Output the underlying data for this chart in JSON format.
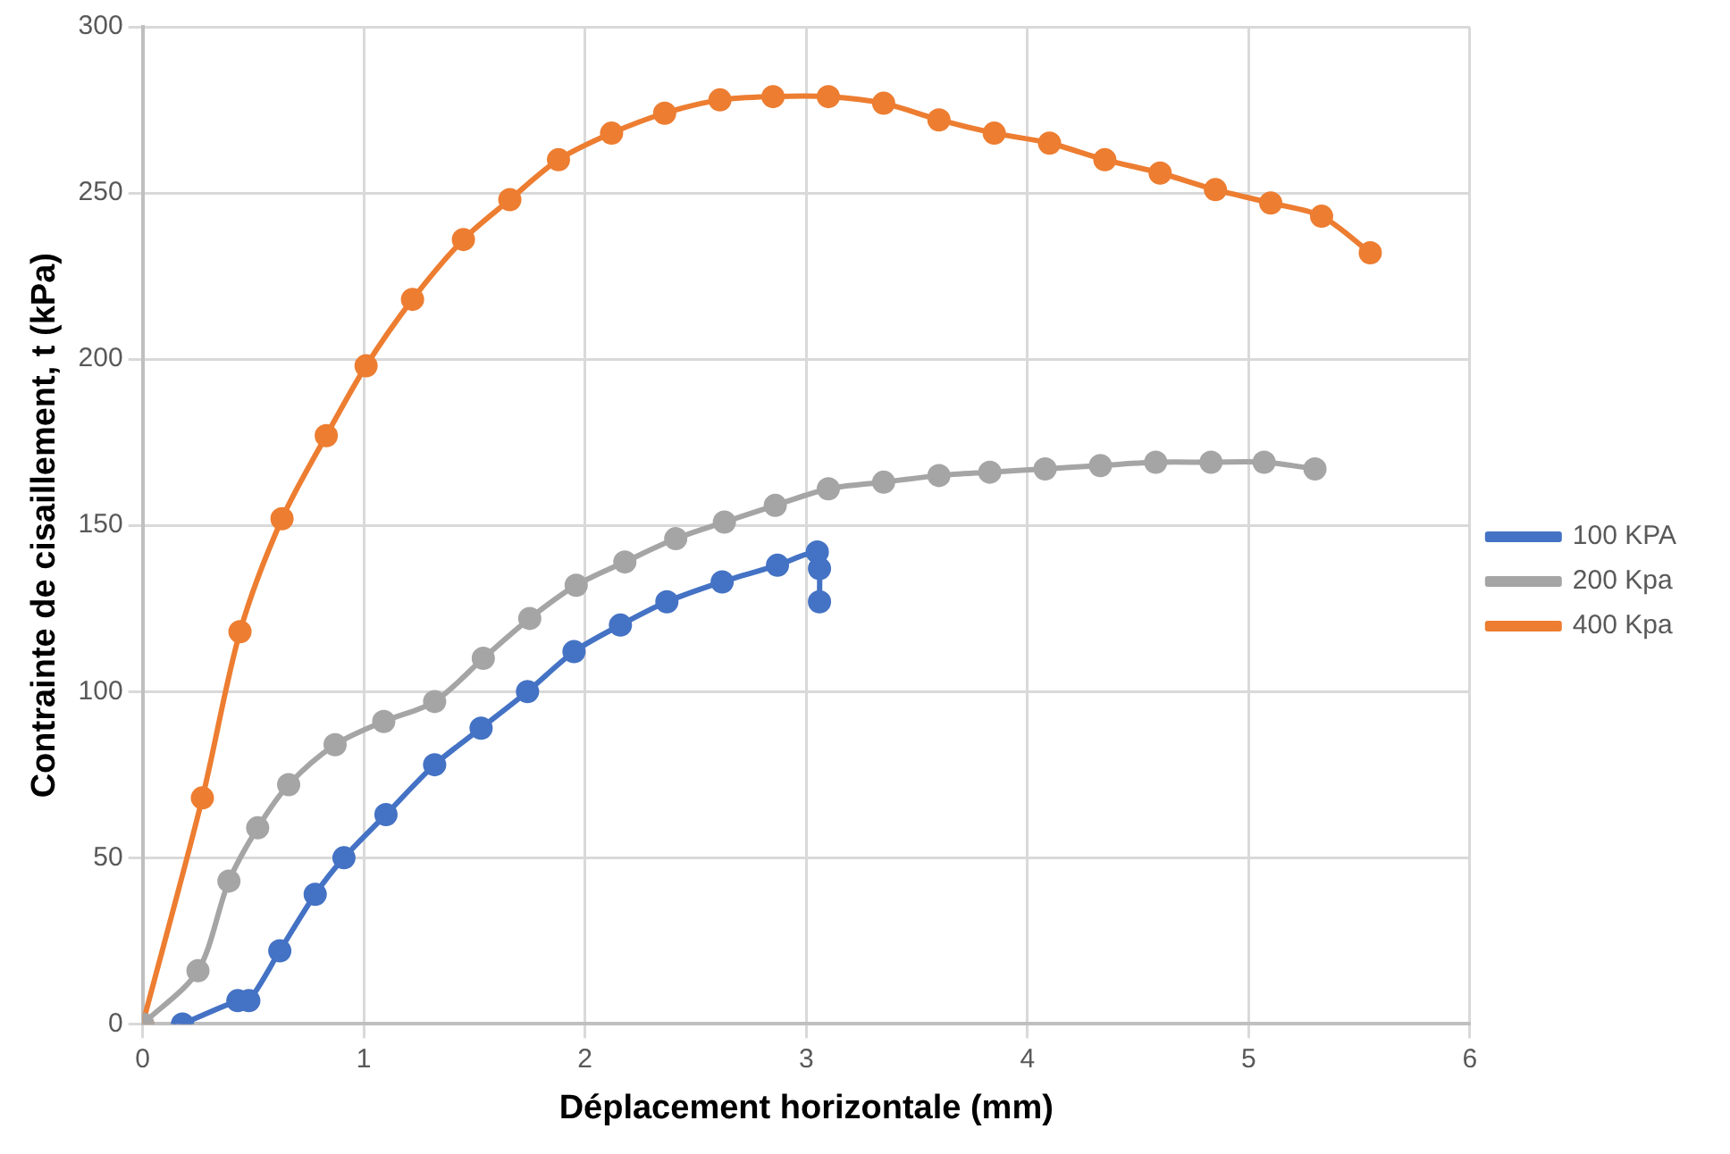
{
  "chart_data": {
    "type": "line",
    "xlabel": "Déplacement horizontale (mm)",
    "ylabel": "Contrainte de cisaillement, t (kPa)",
    "xlim": [
      0,
      6
    ],
    "xticks": [
      0,
      1,
      2,
      3,
      4,
      5,
      6
    ],
    "ylim": [
      0,
      300
    ],
    "yticks": [
      0,
      50,
      100,
      150,
      200,
      250,
      300
    ],
    "grid": true,
    "legend": "right",
    "marker": "circle",
    "series": [
      {
        "name": "100 KPA",
        "color": "#4472c4",
        "x": [
          0.18,
          0.43,
          0.48,
          0.62,
          0.78,
          0.91,
          1.1,
          1.32,
          1.53,
          1.74,
          1.95,
          2.16,
          2.37,
          2.62,
          2.87,
          3.05,
          3.06,
          3.06
        ],
        "values": [
          0,
          7,
          7,
          22,
          39,
          50,
          63,
          78,
          89,
          100,
          112,
          120,
          127,
          133,
          138,
          142,
          137,
          127
        ]
      },
      {
        "name": "200 Kpa",
        "color": "#a5a5a5",
        "x": [
          0,
          0.25,
          0.39,
          0.52,
          0.66,
          0.87,
          1.09,
          1.32,
          1.54,
          1.75,
          1.96,
          2.18,
          2.41,
          2.63,
          2.86,
          3.1,
          3.35,
          3.6,
          3.83,
          4.08,
          4.33,
          4.58,
          4.83,
          5.07,
          5.3
        ],
        "values": [
          0,
          16,
          43,
          59,
          72,
          84,
          91,
          97,
          110,
          122,
          132,
          139,
          146,
          151,
          156,
          161,
          163,
          165,
          166,
          167,
          168,
          169,
          169,
          169,
          167
        ]
      },
      {
        "name": "400 Kpa",
        "color": "#ed7d31",
        "x": [
          0,
          0.27,
          0.44,
          0.63,
          0.83,
          1.01,
          1.22,
          1.45,
          1.66,
          1.88,
          2.12,
          2.36,
          2.61,
          2.85,
          3.1,
          3.35,
          3.6,
          3.85,
          4.1,
          4.35,
          4.6,
          4.85,
          5.1,
          5.33,
          5.55
        ],
        "values": [
          0,
          68,
          118,
          152,
          177,
          198,
          218,
          236,
          248,
          260,
          268,
          274,
          278,
          279,
          279,
          277,
          272,
          268,
          265,
          260,
          256,
          251,
          247,
          243,
          232
        ]
      }
    ]
  }
}
